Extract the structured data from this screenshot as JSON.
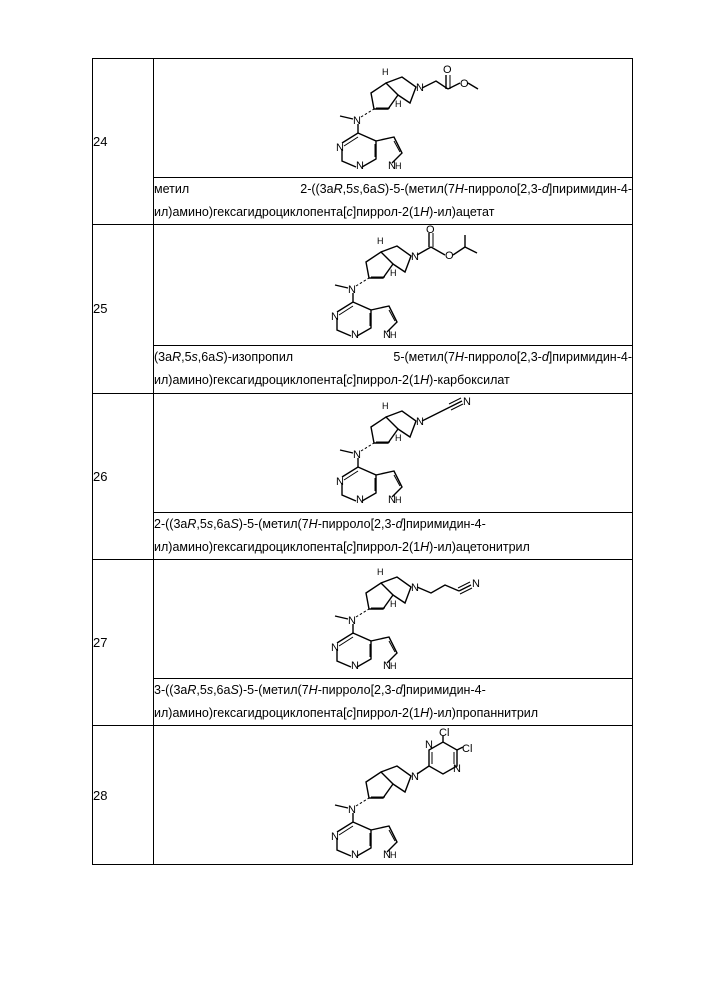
{
  "rows": [
    {
      "num": "24",
      "name_parts": [
        {
          "t": "метил     2-((3a"
        },
        {
          "t": "R",
          "i": true
        },
        {
          "t": ",5"
        },
        {
          "t": "s",
          "i": true
        },
        {
          "t": ",6a"
        },
        {
          "t": "S",
          "i": true
        },
        {
          "t": ")-5-(метил(7"
        },
        {
          "t": "H",
          "i": true
        },
        {
          "t": "-пирроло[2,3-"
        },
        {
          "t": "d",
          "i": true
        },
        {
          "t": "]пиримидин-4-ил)амино)гексагидроциклопента["
        },
        {
          "t": "c",
          "i": true
        },
        {
          "t": "]пиррол-2(1"
        },
        {
          "t": "H",
          "i": true
        },
        {
          "t": ")-ил)ацетат"
        }
      ]
    },
    {
      "num": "25",
      "name_parts": [
        {
          "t": "(3a"
        },
        {
          "t": "R",
          "i": true
        },
        {
          "t": ",5"
        },
        {
          "t": "s",
          "i": true
        },
        {
          "t": ",6a"
        },
        {
          "t": "S",
          "i": true
        },
        {
          "t": ")-изопропил   5-(метил(7"
        },
        {
          "t": "H",
          "i": true
        },
        {
          "t": "-пирроло[2,3-"
        },
        {
          "t": "d",
          "i": true
        },
        {
          "t": "]пиримидин-4-ил)амино)гексагидроциклопента["
        },
        {
          "t": "c",
          "i": true
        },
        {
          "t": "]пиррол-2(1"
        },
        {
          "t": "H",
          "i": true
        },
        {
          "t": ")-карбоксилат"
        }
      ]
    },
    {
      "num": "26",
      "name_parts": [
        {
          "t": "2-((3a"
        },
        {
          "t": "R",
          "i": true
        },
        {
          "t": ",5"
        },
        {
          "t": "s",
          "i": true
        },
        {
          "t": ",6a"
        },
        {
          "t": "S",
          "i": true
        },
        {
          "t": ")-5-(метил(7"
        },
        {
          "t": "H",
          "i": true
        },
        {
          "t": "-пирроло[2,3-"
        },
        {
          "t": "d",
          "i": true
        },
        {
          "t": "]пиримидин-4-ил)амино)гексагидроциклопента["
        },
        {
          "t": "c",
          "i": true
        },
        {
          "t": "]пиррол-2(1"
        },
        {
          "t": "H",
          "i": true
        },
        {
          "t": ")-ил)ацетонитрил"
        }
      ]
    },
    {
      "num": "27",
      "name_parts": [
        {
          "t": "3-((3a"
        },
        {
          "t": "R",
          "i": true
        },
        {
          "t": ",5"
        },
        {
          "t": "s",
          "i": true
        },
        {
          "t": ",6a"
        },
        {
          "t": "S",
          "i": true
        },
        {
          "t": ")-5-(метил(7"
        },
        {
          "t": "H",
          "i": true
        },
        {
          "t": "-пирроло[2,3-"
        },
        {
          "t": "d",
          "i": true
        },
        {
          "t": "]пиримидин-4-ил)амино)гексагидроциклопента["
        },
        {
          "t": "c",
          "i": true
        },
        {
          "t": "]пиррол-2(1"
        },
        {
          "t": "H",
          "i": true
        },
        {
          "t": ")-ил)пропаннитрил"
        }
      ]
    },
    {
      "num": "28"
    }
  ]
}
